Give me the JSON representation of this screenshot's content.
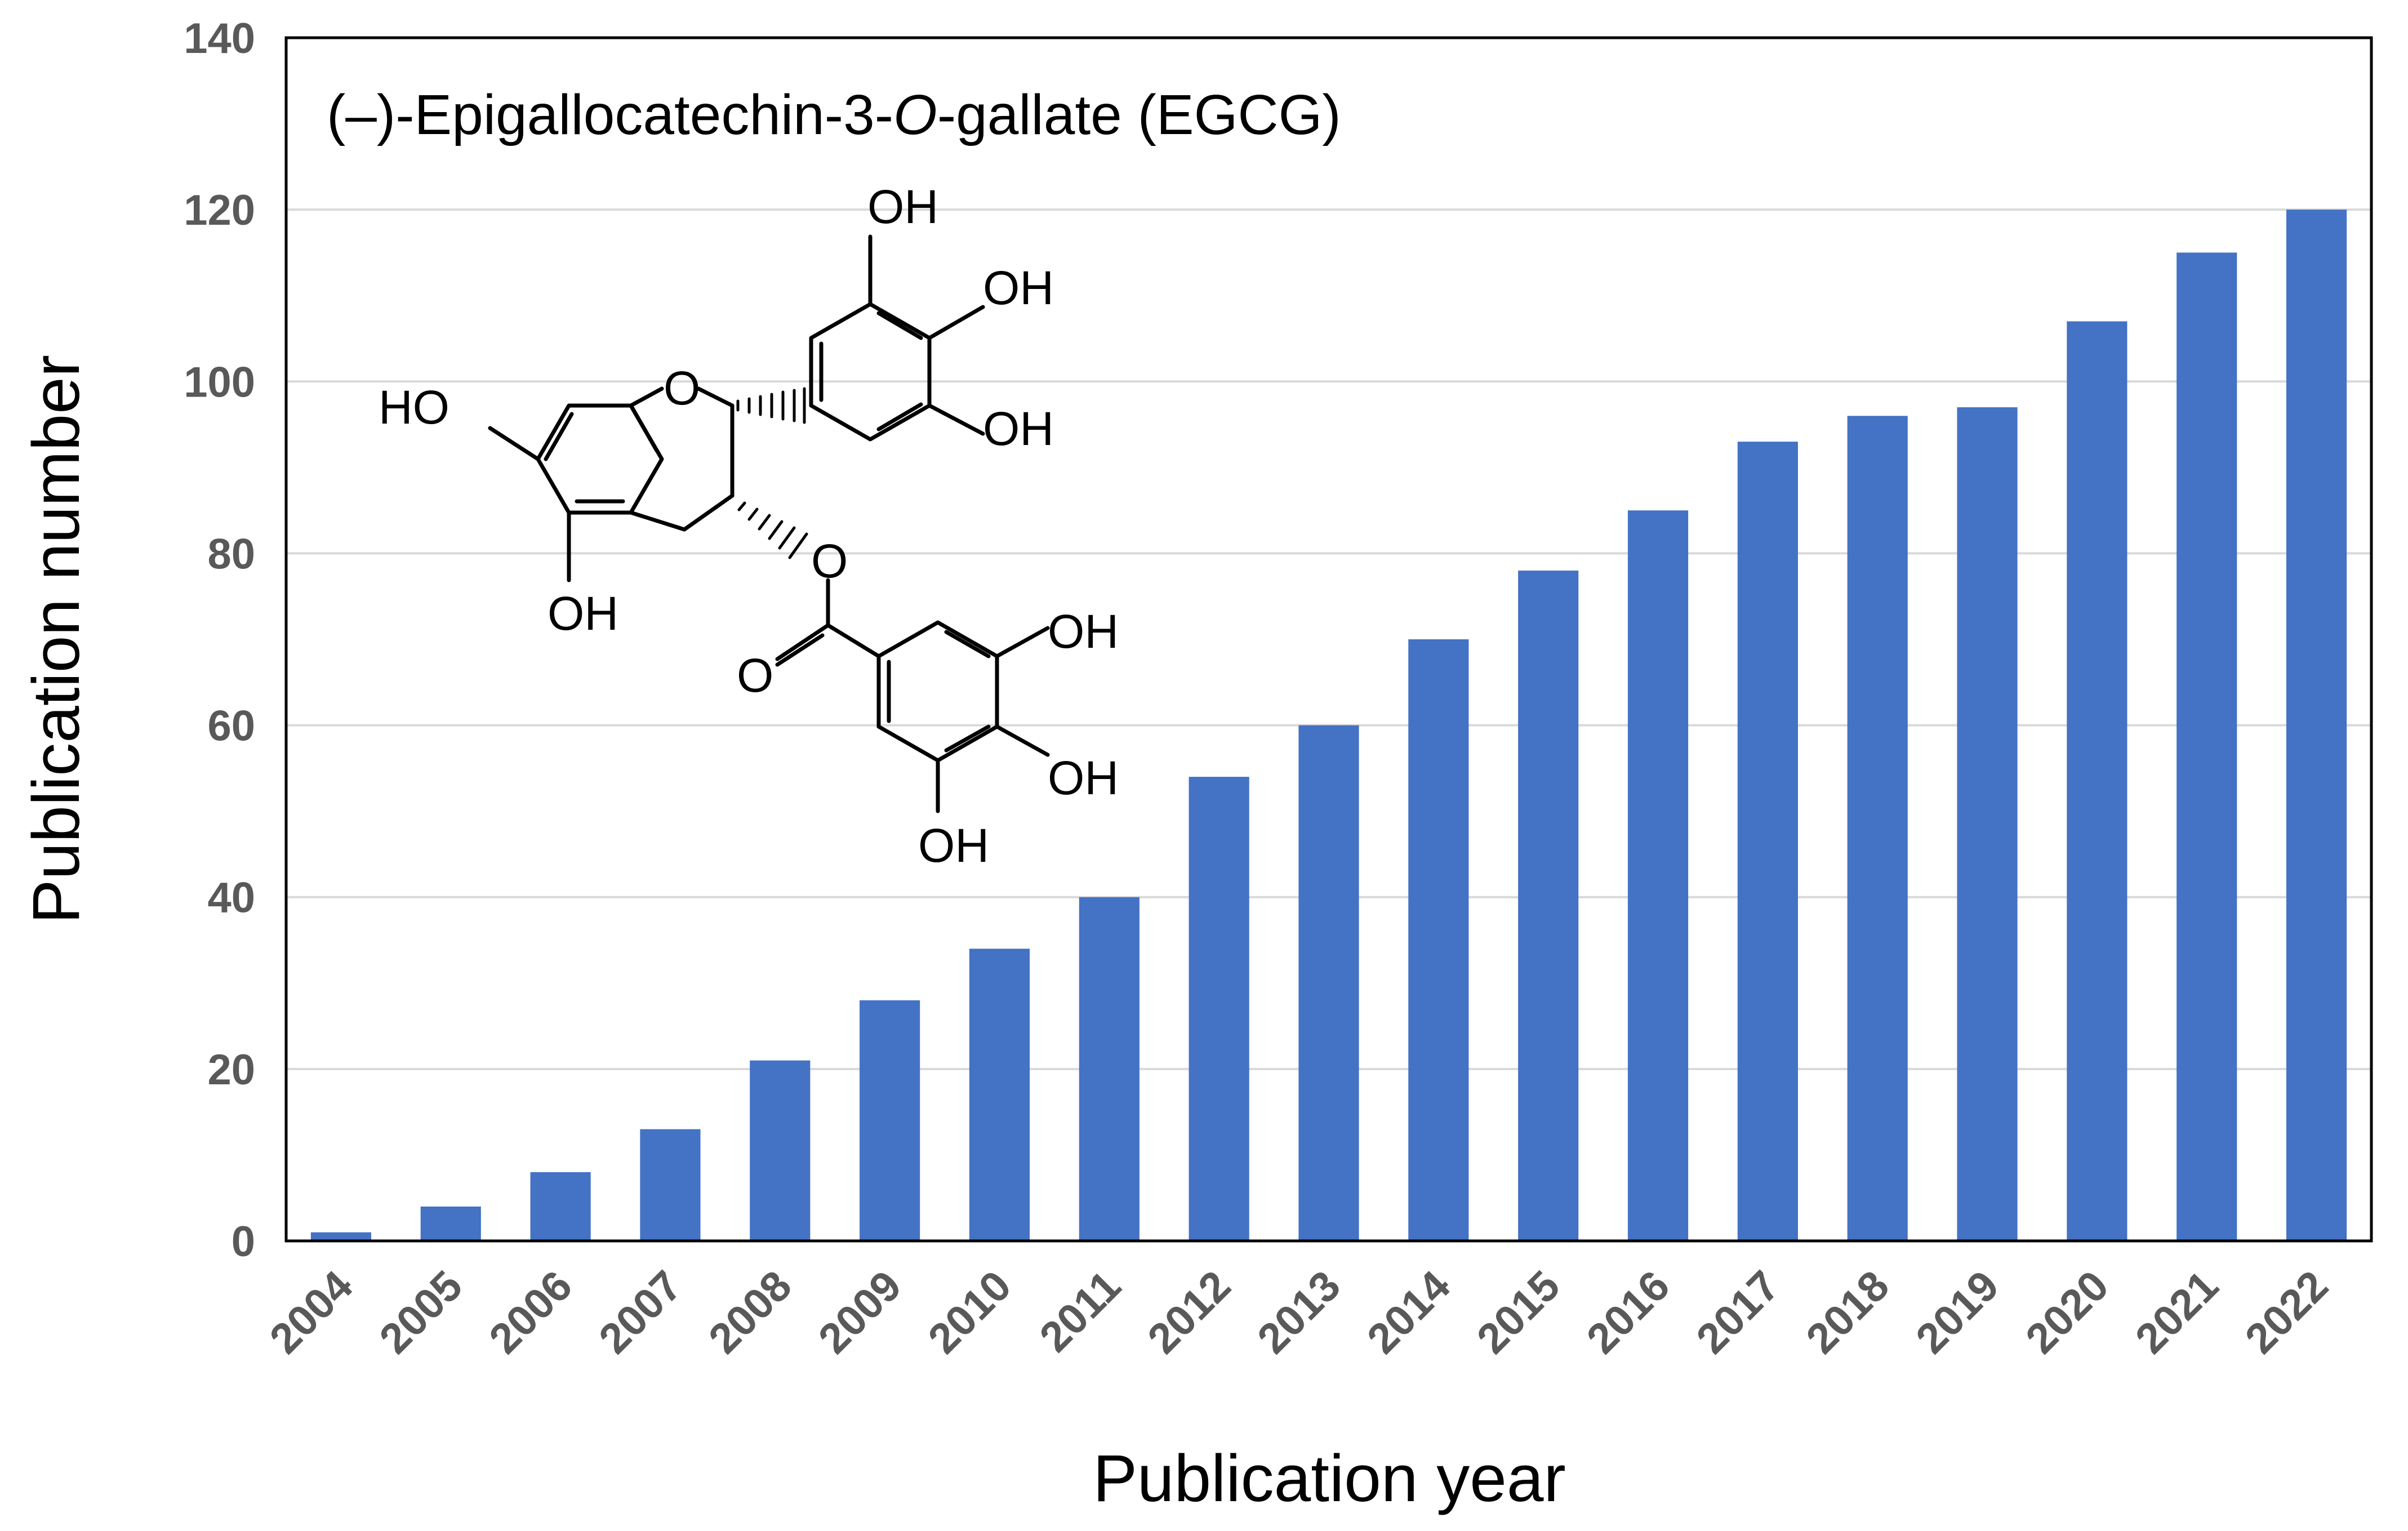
{
  "chart_data": {
    "type": "bar",
    "title": "(–)-Epigallocatechin-3-O-gallate (EGCG)",
    "title_prefix": "(–)-Epigallocatechin-3-",
    "title_italic": "O",
    "title_suffix": "-gallate (EGCG)",
    "xlabel": "Publication year",
    "ylabel": "Publication number",
    "categories": [
      "2004",
      "2005",
      "2006",
      "2007",
      "2008",
      "2009",
      "2010",
      "2011",
      "2012",
      "2013",
      "2014",
      "2015",
      "2016",
      "2017",
      "2018",
      "2019",
      "2020",
      "2021",
      "2022"
    ],
    "values": [
      1,
      4,
      8,
      13,
      21,
      28,
      34,
      40,
      54,
      60,
      70,
      78,
      85,
      93,
      96,
      97,
      107,
      115,
      120
    ],
    "ylim": [
      0,
      140
    ],
    "yticks": [
      0,
      20,
      40,
      60,
      80,
      100,
      120,
      140
    ],
    "grid": true,
    "bar_color": "#4472C4",
    "gridline_color": "#D9D9D9"
  },
  "structure_labels": {
    "ho_a": "HO",
    "ring_o": "O",
    "oh_b1": "OH",
    "oh_b2": "OH",
    "oh_b3": "OH",
    "oh_a5": "OH",
    "ester_o": "O",
    "carbonyl_o": "O",
    "oh_g1": "OH",
    "oh_g2": "OH",
    "oh_g3": "OH"
  }
}
